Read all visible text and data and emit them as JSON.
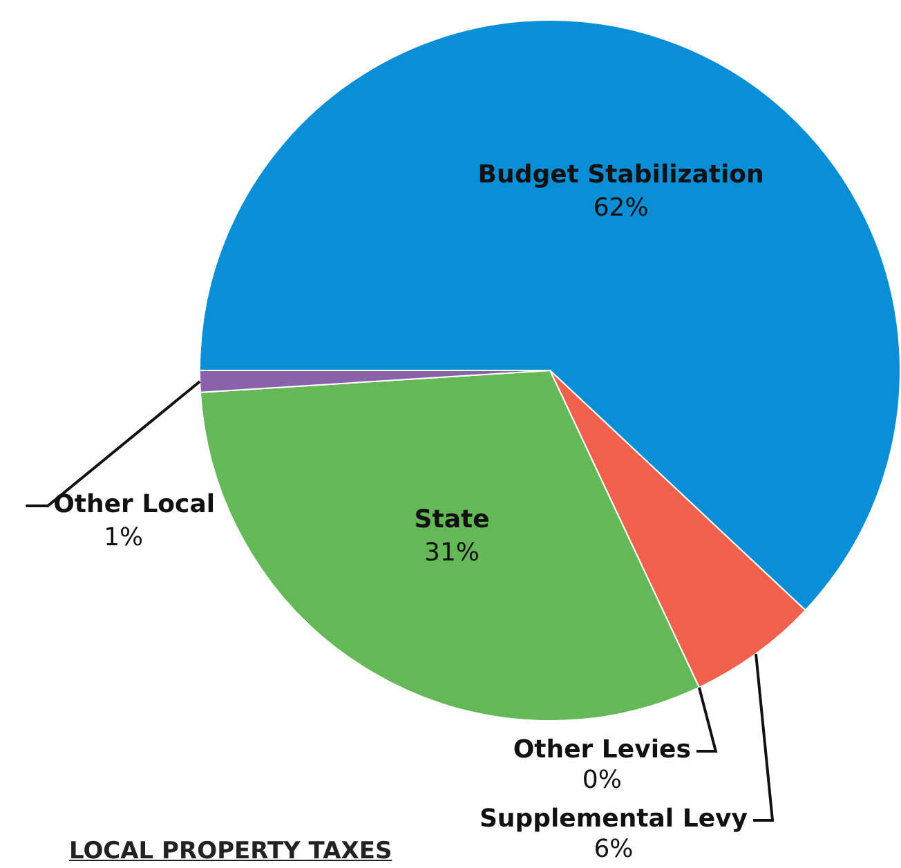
{
  "chart_data": {
    "type": "pie",
    "title": "LOCAL PROPERTY TAXES",
    "categories": [
      "Budget Stabilization",
      "Supplemental Levy",
      "Other Levies",
      "State",
      "Other Local"
    ],
    "values": [
      62,
      6,
      0,
      31,
      1
    ],
    "value_labels": [
      "62%",
      "6%",
      "0%",
      "31%",
      "1%"
    ],
    "colors": [
      "#0a8fd6",
      "#f0604b",
      "#f2e67a",
      "#63b955",
      "#8a62a8"
    ],
    "legend": false
  }
}
